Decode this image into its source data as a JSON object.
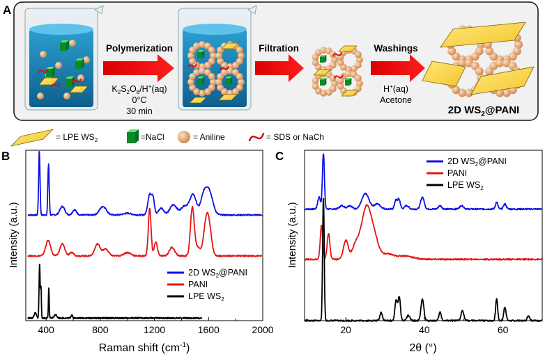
{
  "panel_a": {
    "label": "A",
    "steps": {
      "polymerization": "Polymerization",
      "reagent_k": "K",
      "reagent_s": "S",
      "reagent_o": "O",
      "reagent_sub2": "2",
      "reagent_sub8": "8",
      "reagent_tail": "/H",
      "reagent_plus": "+",
      "reagent_aq": "(aq)",
      "temp": "0°C",
      "time": "30 min",
      "filtration": "Filtration",
      "washings": "Washings",
      "wash_h": "H",
      "wash_plus": "+",
      "wash_aq": "(aq)",
      "wash_acetone": "Acetone",
      "product_pre": "2D WS",
      "product_sub": "2",
      "product_post": "@PANI"
    },
    "legend": {
      "lpe_pre": "= LPE WS",
      "lpe_sub": "2",
      "nacl": "=NaCl",
      "aniline": "= Aniline",
      "sds": "= SDS or NaCh"
    }
  },
  "chart_data": [
    {
      "panel": "B",
      "type": "line",
      "xlabel": "Raman shift (cm",
      "xlabel_sup": "-1",
      "xlabel_end": ")",
      "ylabel": "Intensity (a.u.)",
      "xlim": [
        250,
        2000
      ],
      "xticks": [
        "400",
        "800",
        "1200",
        "1600",
        "2000"
      ],
      "xtick_values": [
        400,
        800,
        1200,
        1600,
        2000
      ],
      "legend": [
        {
          "pre": "2D WS",
          "sub": "2",
          "post": "@PANI",
          "color": "#1010e6"
        },
        {
          "pre": "PANI",
          "sub": "",
          "post": "",
          "color": "#e61414"
        },
        {
          "pre": "LPE WS",
          "sub": "2",
          "post": "",
          "color": "#000000"
        }
      ],
      "series": [
        {
          "name": "2D WS2@PANI",
          "color": "#1010e6",
          "baseline": 0.62,
          "xrange": [
            265,
            1995
          ],
          "peaks": [
            [
              350,
              0.38,
              5
            ],
            [
              418,
              0.3,
              5
            ],
            [
              520,
              0.05,
              18
            ],
            [
              610,
              0.03,
              15
            ],
            [
              820,
              0.05,
              25
            ],
            [
              1000,
              0.01,
              30
            ],
            [
              1165,
              0.12,
              14
            ],
            [
              1190,
              0.09,
              10
            ],
            [
              1250,
              0.04,
              20
            ],
            [
              1340,
              0.06,
              25
            ],
            [
              1420,
              0.05,
              25
            ],
            [
              1485,
              0.12,
              25
            ],
            [
              1560,
              0.08,
              20
            ],
            [
              1600,
              0.15,
              28
            ]
          ]
        },
        {
          "name": "PANI",
          "color": "#e61414",
          "baseline": 0.38,
          "xrange": [
            265,
            1995
          ],
          "peaks": [
            [
              415,
              0.09,
              18
            ],
            [
              520,
              0.07,
              18
            ],
            [
              590,
              0.02,
              15
            ],
            [
              780,
              0.07,
              20
            ],
            [
              840,
              0.04,
              20
            ],
            [
              1000,
              0.02,
              25
            ],
            [
              1165,
              0.28,
              10
            ],
            [
              1210,
              0.08,
              12
            ],
            [
              1330,
              0.05,
              20
            ],
            [
              1480,
              0.28,
              14
            ],
            [
              1520,
              0.05,
              20
            ],
            [
              1580,
              0.17,
              18
            ],
            [
              1605,
              0.15,
              18
            ]
          ]
        },
        {
          "name": "LPE WS2",
          "color": "#000000",
          "baseline": 0.015,
          "xrange": [
            265,
            1550
          ],
          "peaks": [
            [
              320,
              0.03,
              8
            ],
            [
              352,
              0.32,
              4
            ],
            [
              362,
              0.18,
              3
            ],
            [
              420,
              0.18,
              3
            ],
            [
              470,
              0.02,
              10
            ],
            [
              590,
              0.02,
              6
            ]
          ]
        }
      ]
    },
    {
      "panel": "C",
      "type": "line",
      "xlabel": "2θ (°)",
      "ylabel": "Intensity (a.u.)",
      "xlim": [
        9.5,
        70
      ],
      "xticks": [
        "20",
        "40",
        "60"
      ],
      "xtick_values": [
        20,
        40,
        60
      ],
      "legend": [
        {
          "pre": "2D WS",
          "sub": "2",
          "post": "@PANI",
          "color": "#1010e6"
        },
        {
          "pre": "PANI",
          "sub": "",
          "post": "",
          "color": "#e61414"
        },
        {
          "pre": "LPE WS",
          "sub": "2",
          "post": "",
          "color": "#000000"
        }
      ],
      "series": [
        {
          "name": "2D WS2@PANI",
          "color": "#1010e6",
          "baseline": 0.655,
          "xrange": [
            9.5,
            70
          ],
          "peaks": [
            [
              13.2,
              0.07,
              0.35
            ],
            [
              14.3,
              0.33,
              0.25
            ],
            [
              19,
              0.02,
              0.6
            ],
            [
              21,
              0.02,
              0.6
            ],
            [
              25,
              0.09,
              0.9
            ],
            [
              28,
              0.03,
              0.8
            ],
            [
              32.7,
              0.05,
              0.3
            ],
            [
              33.5,
              0.06,
              0.35
            ],
            [
              35.5,
              0.02,
              0.5
            ],
            [
              39.5,
              0.07,
              0.45
            ],
            [
              44,
              0.02,
              0.4
            ],
            [
              49.5,
              0.02,
              0.5
            ],
            [
              58.4,
              0.04,
              0.3
            ],
            [
              60.5,
              0.03,
              0.35
            ]
          ]
        },
        {
          "name": "PANI",
          "color": "#e61414",
          "baseline": 0.36,
          "xrange": [
            9.5,
            70
          ],
          "peaks": [
            [
              13.8,
              0.2,
              0.3
            ],
            [
              15.6,
              0.15,
              0.35
            ],
            [
              20,
              0.11,
              0.6
            ],
            [
              22.5,
              0.08,
              0.9
            ],
            [
              25.3,
              0.31,
              1.3
            ],
            [
              27.5,
              0.08,
              1.0
            ],
            [
              30.5,
              0.03,
              1.5
            ],
            [
              35,
              0.02,
              2.0
            ]
          ]
        },
        {
          "name": "LPE WS2",
          "color": "#000000",
          "baseline": 0.0,
          "xrange": [
            9.5,
            70
          ],
          "peaks": [
            [
              14.3,
              0.73,
              0.2
            ],
            [
              29,
              0.05,
              0.3
            ],
            [
              32.8,
              0.12,
              0.3
            ],
            [
              33.6,
              0.14,
              0.3
            ],
            [
              35.9,
              0.03,
              0.4
            ],
            [
              39.5,
              0.13,
              0.35
            ],
            [
              44,
              0.05,
              0.3
            ],
            [
              49.7,
              0.06,
              0.35
            ],
            [
              58.4,
              0.13,
              0.25
            ],
            [
              60.5,
              0.08,
              0.3
            ],
            [
              66.5,
              0.03,
              0.3
            ]
          ]
        }
      ]
    }
  ]
}
